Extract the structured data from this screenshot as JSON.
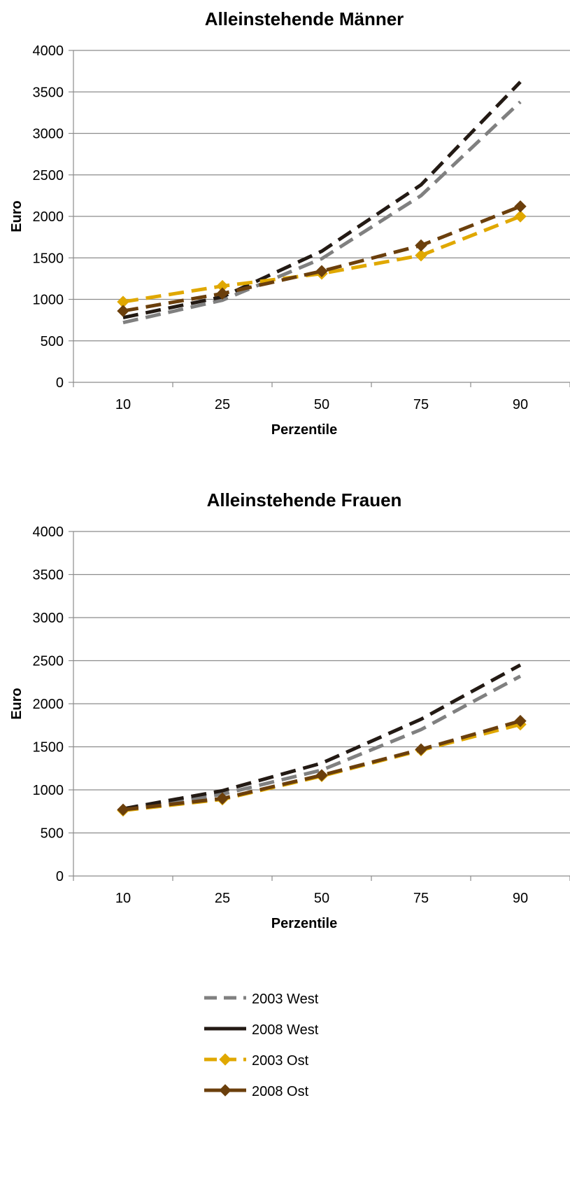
{
  "chart_data": [
    {
      "type": "line",
      "title": "Alleinstehende Männer",
      "xlabel": "Perzentile",
      "ylabel": "Euro",
      "categories": [
        "10",
        "25",
        "50",
        "75",
        "90"
      ],
      "ylim": [
        0,
        4000
      ],
      "yticks": [
        0,
        500,
        1000,
        1500,
        2000,
        2500,
        3000,
        3500,
        4000
      ],
      "grid": true,
      "series": [
        {
          "name": "2003 West",
          "values": [
            720,
            990,
            1490,
            2250,
            3380
          ]
        },
        {
          "name": "2008 West",
          "values": [
            780,
            1030,
            1580,
            2380,
            3620
          ]
        },
        {
          "name": "2003 Ost",
          "values": [
            970,
            1160,
            1310,
            1530,
            2000
          ]
        },
        {
          "name": "2008 Ost",
          "values": [
            860,
            1070,
            1340,
            1650,
            2120
          ]
        }
      ]
    },
    {
      "type": "line",
      "title": "Alleinstehende Frauen",
      "xlabel": "Perzentile",
      "ylabel": "Euro",
      "categories": [
        "10",
        "25",
        "50",
        "75",
        "90"
      ],
      "ylim": [
        0,
        4000
      ],
      "yticks": [
        0,
        500,
        1000,
        1500,
        2000,
        2500,
        3000,
        3500,
        4000
      ],
      "grid": true,
      "series": [
        {
          "name": "2003 West",
          "values": [
            760,
            950,
            1230,
            1700,
            2320
          ]
        },
        {
          "name": "2008 West",
          "values": [
            780,
            990,
            1310,
            1820,
            2450
          ]
        },
        {
          "name": "2003 Ost",
          "values": [
            760,
            890,
            1160,
            1460,
            1760
          ]
        },
        {
          "name": "2008 Ost",
          "values": [
            770,
            900,
            1170,
            1470,
            1800
          ]
        }
      ]
    }
  ],
  "legend": {
    "placement": "bottom",
    "entries": [
      {
        "label": "2003 West",
        "color": "#808080",
        "style": "dashed",
        "marker": "none"
      },
      {
        "label": "2008 West",
        "color": "#231a14",
        "style": "solid",
        "marker": "none"
      },
      {
        "label": "2003 Ost",
        "color": "#e0a800",
        "style": "dashed",
        "marker": "diamond"
      },
      {
        "label": "2008 Ost",
        "color": "#6b3f0c",
        "style": "solid",
        "marker": "diamond"
      }
    ]
  }
}
